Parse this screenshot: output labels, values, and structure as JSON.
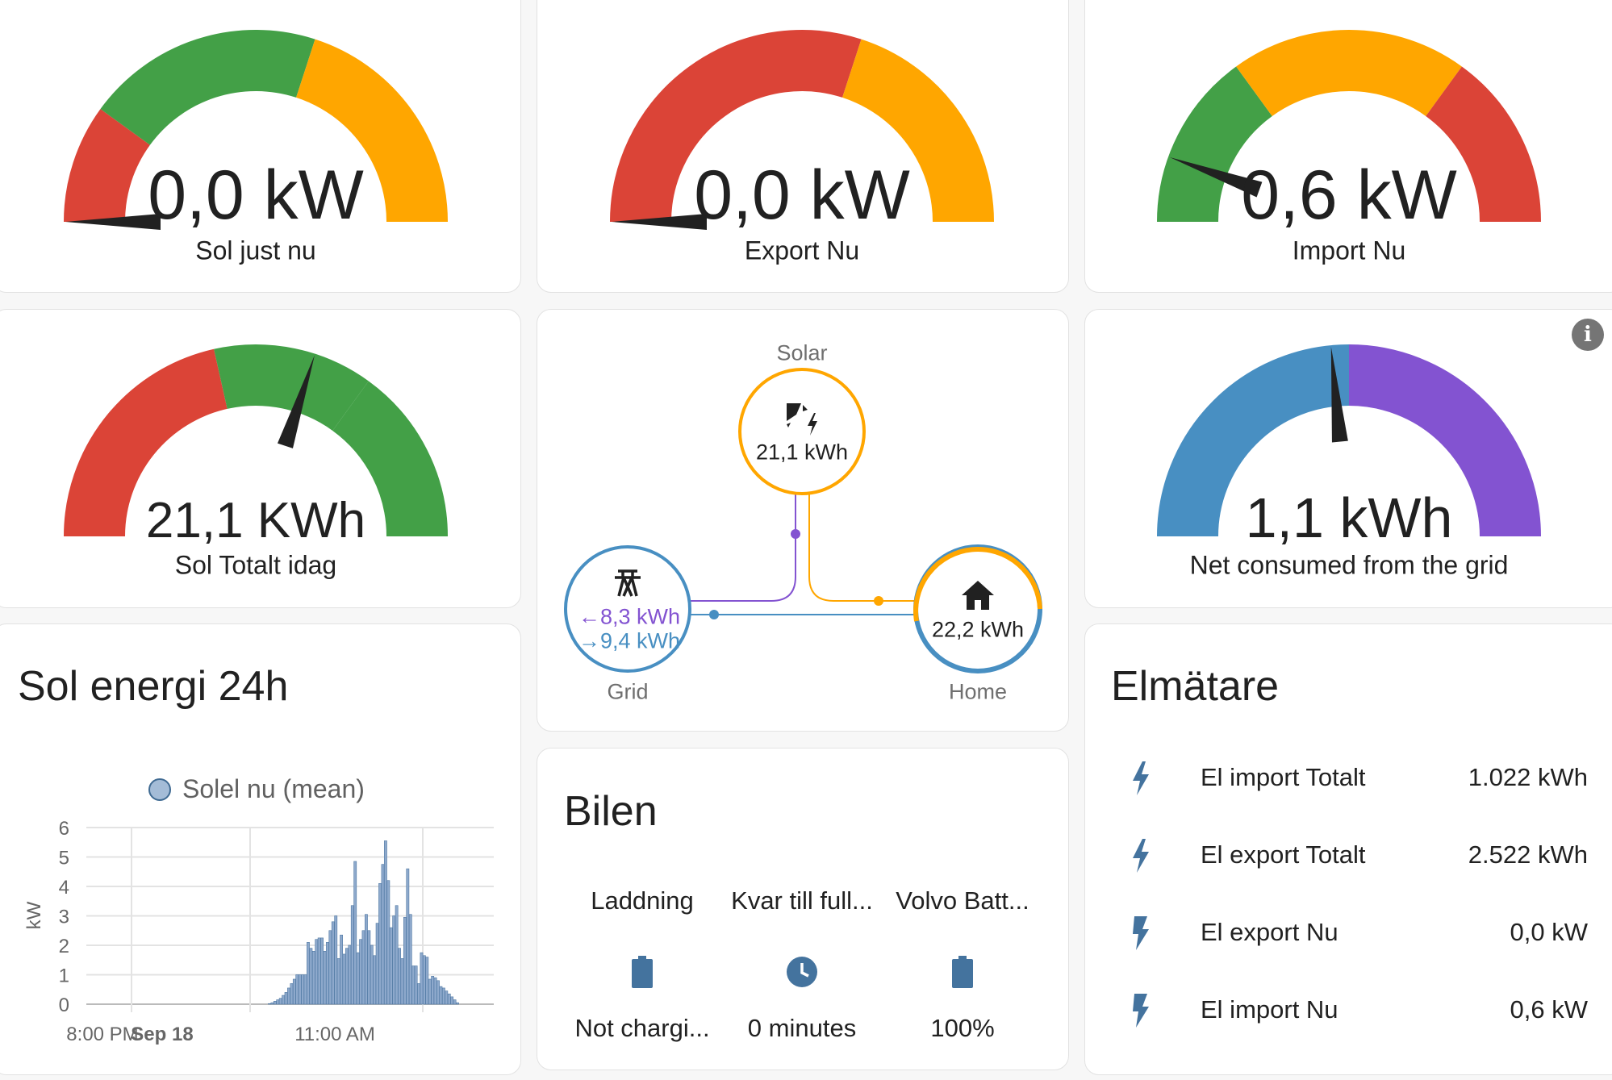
{
  "colors": {
    "red": "#db4437",
    "green": "#43a047",
    "orange": "#ffa600",
    "blue": "#488fc2",
    "purple": "#8353d1",
    "needle": "#212121",
    "icon": "#44739e"
  },
  "gauges": [
    {
      "id": "sol-just-nu",
      "value": "0,0 kW",
      "label": "Sol just nu",
      "needle_level": 0.0,
      "segments": [
        {
          "to": 0.2,
          "color": "#db4437"
        },
        {
          "to": 0.6,
          "color": "#43a047"
        },
        {
          "to": 1,
          "color": "#ffa600"
        }
      ]
    },
    {
      "id": "export-nu",
      "value": "0,0 kW",
      "label": "Export Nu",
      "needle_level": 0.0,
      "segments": [
        {
          "to": 0.6,
          "color": "#db4437"
        },
        {
          "to": 1,
          "color": "#ffa600"
        }
      ]
    },
    {
      "id": "import-nu",
      "value": "0,6 kW",
      "label": "Import Nu",
      "needle_level": 0.11,
      "segments": [
        {
          "to": 0.3,
          "color": "#43a047"
        },
        {
          "to": 0.7,
          "color": "#ffa600"
        },
        {
          "to": 1,
          "color": "#db4437"
        }
      ]
    },
    {
      "id": "sol-totalt-idag",
      "value": "21,1 KWh",
      "label": "Sol Totalt idag",
      "needle_level": 0.6,
      "segments": [
        {
          "to": 0.43,
          "color": "#db4437"
        },
        {
          "to": 0.7,
          "color": "#43a047"
        },
        {
          "to": 1,
          "color": "#43a047"
        }
      ]
    },
    {
      "id": "net-consumed",
      "value": "1,1 kWh",
      "label": "Net consumed from the grid",
      "needle_level": 0.47,
      "segments": [
        {
          "to": 0.5,
          "color": "#488fc2"
        },
        {
          "to": 1,
          "color": "#8353d1"
        }
      ]
    }
  ],
  "energy": {
    "solar": {
      "label": "Solar",
      "value": "21,1 kWh",
      "icon": "solar-power-icon"
    },
    "grid": {
      "label": "Grid",
      "from_grid": "←8,3 kWh",
      "to_grid": "→9,4 kWh",
      "icon": "transmission-tower-icon"
    },
    "home": {
      "label": "Home",
      "value": "22,2 kWh",
      "icon": "home-icon"
    }
  },
  "chart_card": {
    "title": "Sol energi 24h"
  },
  "chart_data": {
    "type": "bar",
    "legend": [
      "Solel nu (mean)"
    ],
    "ylabel": "kW",
    "ylim": [
      0,
      6
    ],
    "yticks": [
      "0",
      "1",
      "2",
      "3",
      "4",
      "5",
      "6"
    ],
    "xticks": [
      "8:00 PM",
      "Sep 18",
      "11:00 AM"
    ],
    "grid": true,
    "legend_position": "top",
    "series": [
      {
        "name": "Solel nu (mean)",
        "color": "#7f9fc6",
        "values": [
          0.02,
          0.05,
          0.1,
          0.15,
          0.2,
          0.3,
          0.4,
          0.55,
          0.7,
          0.85,
          1.0,
          1.0,
          1.0,
          1.0,
          2.1,
          1.9,
          1.8,
          2.2,
          2.25,
          2.25,
          1.8,
          2.1,
          2.5,
          2.8,
          3.0,
          1.55,
          2.35,
          1.7,
          1.9,
          2.0,
          3.35,
          4.85,
          1.75,
          2.2,
          2.5,
          3.05,
          2.5,
          2.0,
          1.65,
          2.75,
          4.1,
          4.75,
          5.55,
          4.2,
          2.6,
          3.0,
          3.35,
          1.9,
          1.55,
          2.95,
          4.6,
          3.05,
          1.3,
          1.3,
          0.7,
          1.75,
          1.65,
          1.6,
          0.85,
          0.95,
          0.9,
          0.8,
          0.6,
          0.55,
          0.45,
          0.35,
          0.25,
          0.15,
          0.05
        ]
      }
    ]
  },
  "bilen": {
    "title": "Bilen",
    "items": [
      {
        "name": "Laddning",
        "state": "Not chargi...",
        "icon": "battery-icon"
      },
      {
        "name": "Kvar till full...",
        "state": "0 minutes",
        "icon": "clock-icon"
      },
      {
        "name": "Volvo Batt...",
        "state": "100%",
        "icon": "battery-icon"
      }
    ]
  },
  "elmatare": {
    "title": "Elmätare",
    "rows": [
      {
        "name": "El import Totalt",
        "value": "1.022 kWh",
        "icon": "flash-icon"
      },
      {
        "name": "El export Totalt",
        "value": "2.522 kWh",
        "icon": "flash-icon"
      },
      {
        "name": "El export Nu",
        "value": "0,0 kW",
        "icon": "flash-outline-icon"
      },
      {
        "name": "El import Nu",
        "value": "0,6 kW",
        "icon": "flash-outline-icon"
      }
    ]
  }
}
